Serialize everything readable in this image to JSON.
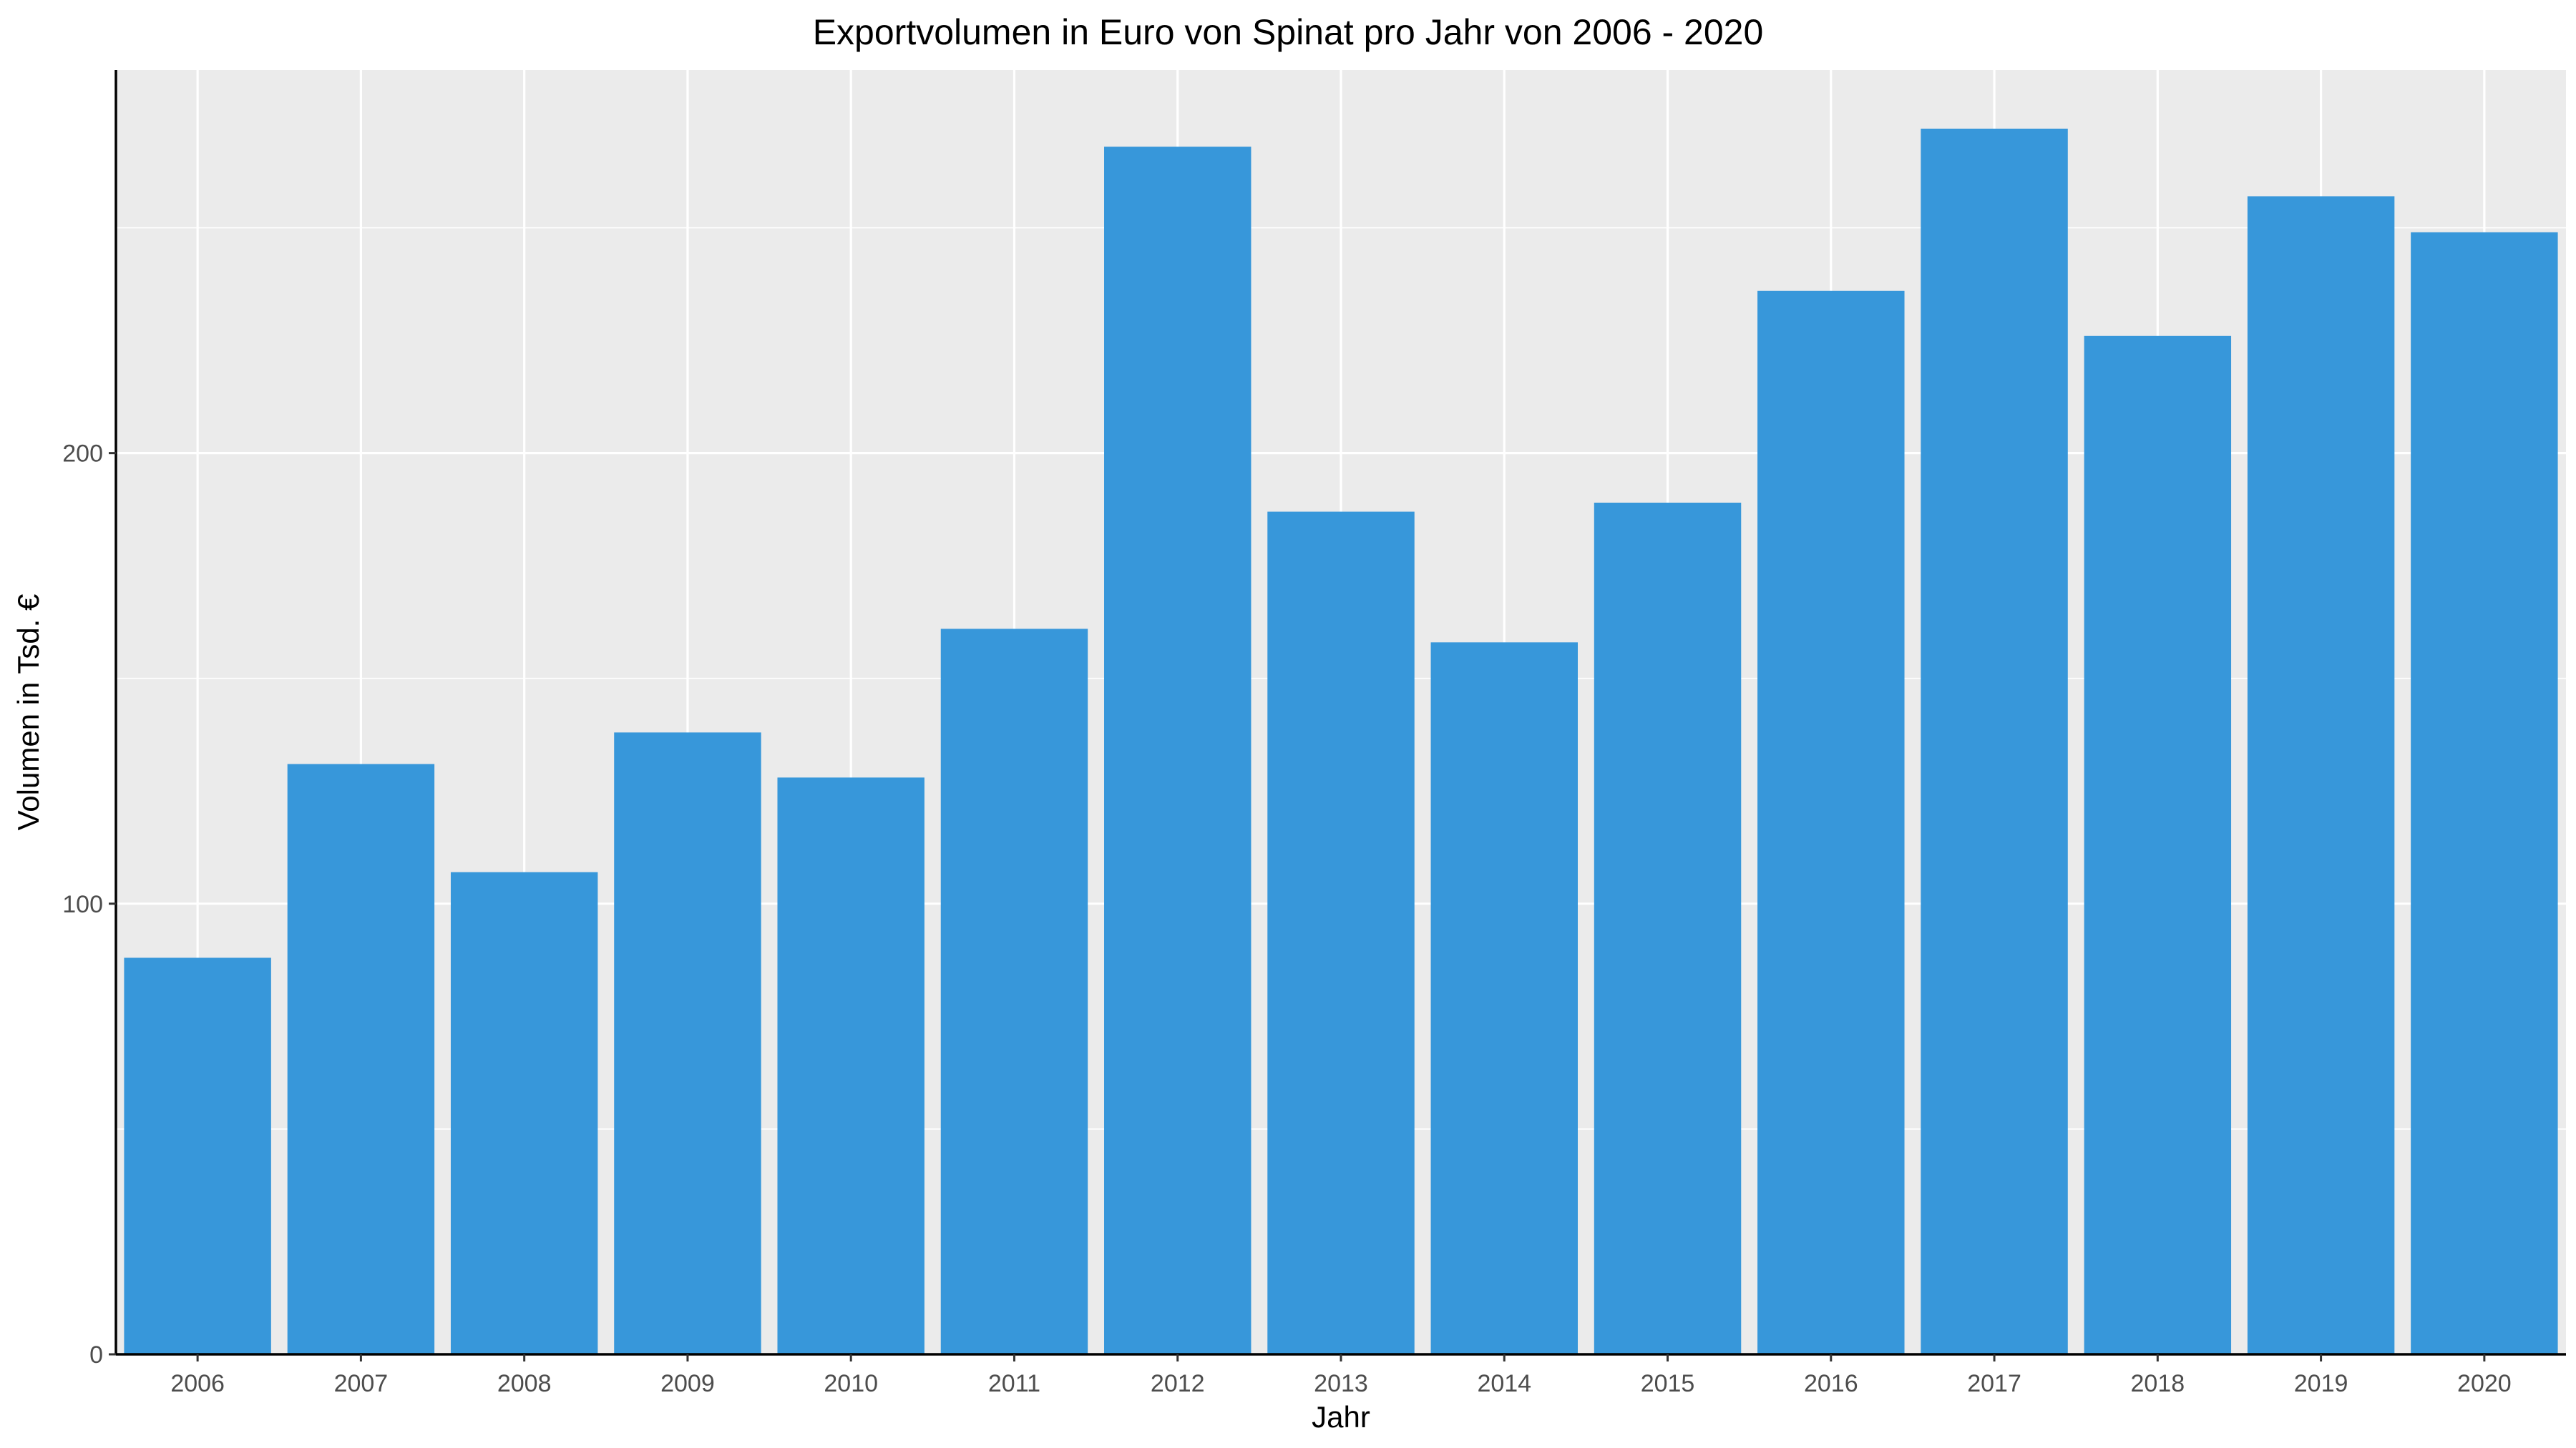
{
  "chart_data": {
    "type": "bar",
    "title": "Exportvolumen in Euro von Spinat pro Jahr von 2006 - 2020",
    "xlabel": "Jahr",
    "ylabel": "Volumen in Tsd. €",
    "categories": [
      "2006",
      "2007",
      "2008",
      "2009",
      "2010",
      "2011",
      "2012",
      "2013",
      "2014",
      "2015",
      "2016",
      "2017",
      "2018",
      "2019",
      "2020"
    ],
    "values": [
      88,
      131,
      107,
      138,
      128,
      161,
      268,
      187,
      158,
      189,
      236,
      272,
      226,
      257,
      249
    ],
    "ylim": [
      0,
      285
    ],
    "yticks": [
      0,
      100,
      200
    ],
    "ytick_labels": [
      "0",
      "100",
      "200"
    ],
    "grid": true,
    "legend": "none",
    "colors": {
      "bar": "#3797da",
      "panel_background": "#ebebeb",
      "grid": "#ffffff",
      "axis_line": "#000000",
      "tick_label": "#4d4d4d"
    }
  }
}
